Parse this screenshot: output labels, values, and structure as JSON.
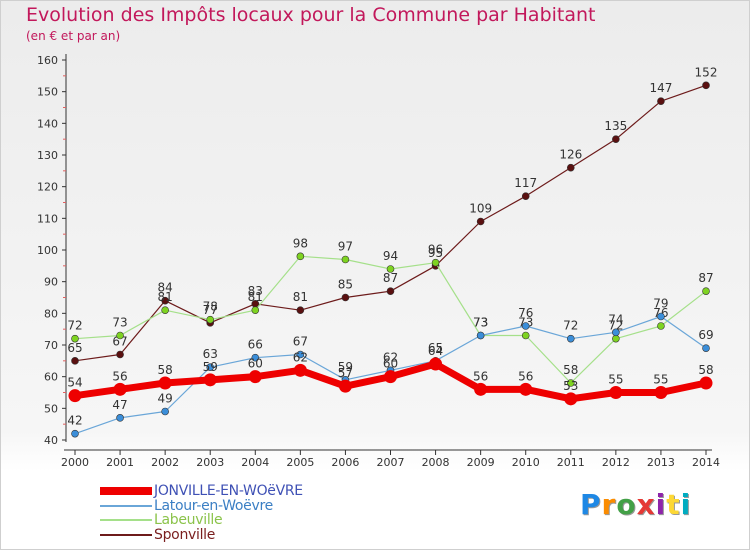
{
  "title": "Evolution des Impôts locaux pour la Commune par Habitant",
  "subtitle": "(en € et par an)",
  "logo": {
    "text": "Proxiti",
    "colors": [
      "#1e88e5",
      "#fb8c00",
      "#43a047",
      "#e53935",
      "#8e24aa",
      "#fdd835",
      "#00acc1"
    ]
  },
  "chart_data": {
    "type": "line",
    "x": [
      "2000",
      "2001",
      "2002",
      "2003",
      "2004",
      "2005",
      "2006",
      "2007",
      "2008",
      "2009",
      "2010",
      "2011",
      "2012",
      "2013",
      "2014"
    ],
    "ylim": [
      40,
      160
    ],
    "yticks": [
      40,
      50,
      60,
      70,
      80,
      90,
      100,
      110,
      120,
      130,
      140,
      150,
      160
    ],
    "grid": false,
    "legend_position": "bottom-left",
    "series": [
      {
        "name": "Sponville",
        "color": "#6d1b1b",
        "marker": "#5a1010",
        "width": 1.2,
        "values": [
          65,
          67,
          84,
          77,
          83,
          81,
          85,
          87,
          95,
          109,
          117,
          126,
          135,
          147,
          152
        ]
      },
      {
        "name": "Labeuville",
        "color": "#a5e08a",
        "marker": "#7ed321",
        "width": 1.2,
        "values": [
          72,
          73,
          81,
          78,
          81,
          98,
          97,
          94,
          96,
          73,
          73,
          58,
          72,
          76,
          87
        ]
      },
      {
        "name": "Latour-en-Woëvre",
        "color": "#6aa6d8",
        "marker": "#3b8ed9",
        "width": 1.2,
        "values": [
          42,
          47,
          49,
          63,
          66,
          67,
          59,
          62,
          65,
          73,
          76,
          72,
          74,
          79,
          69
        ]
      },
      {
        "name": "JONVILLE-EN-WOëVRE",
        "color": "#ee0000",
        "marker": "#ee0000",
        "width": 7,
        "values": [
          54,
          56,
          58,
          59,
          60,
          62,
          57,
          60,
          64,
          56,
          56,
          53,
          55,
          55,
          58
        ]
      }
    ],
    "legend_order": [
      "JONVILLE-EN-WOëVRE",
      "Latour-en-Woëvre",
      "Labeuville",
      "Sponville"
    ]
  }
}
